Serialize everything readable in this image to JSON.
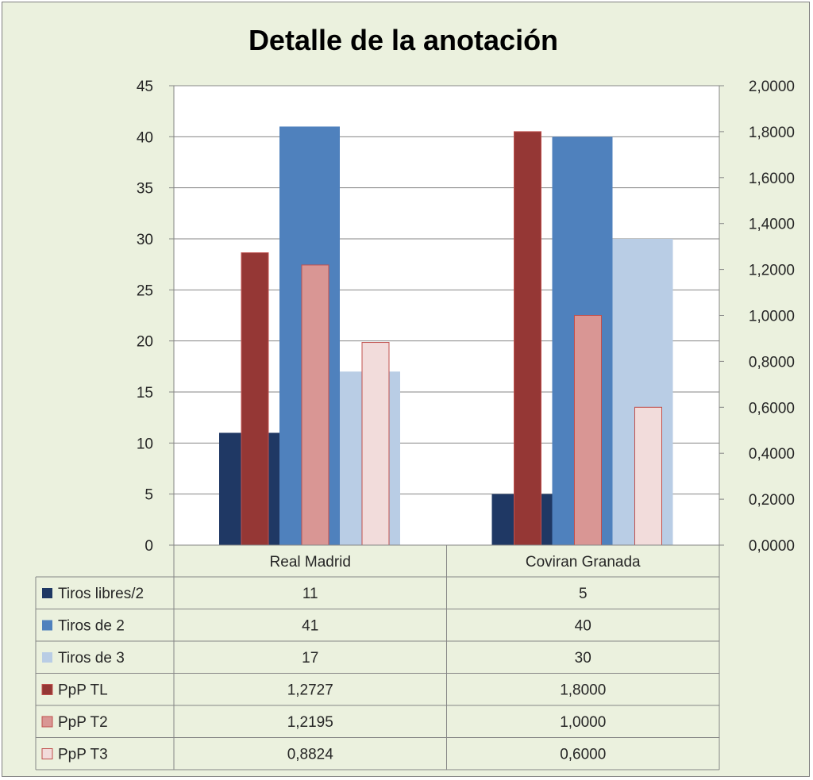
{
  "chart_data": {
    "type": "bar",
    "title": "Detalle de la anotación",
    "categories": [
      "Real Madrid",
      "Coviran Granada"
    ],
    "series": [
      {
        "name": "Tiros libres/2",
        "axis": "left",
        "values": [
          11,
          5
        ],
        "labels": [
          "11",
          "5"
        ],
        "color": "#1f3864"
      },
      {
        "name": "Tiros de 2",
        "axis": "left",
        "values": [
          41,
          40
        ],
        "labels": [
          "41",
          "40"
        ],
        "color": "#4f81bd"
      },
      {
        "name": "Tiros de 3",
        "axis": "left",
        "values": [
          17,
          30
        ],
        "labels": [
          "17",
          "30"
        ],
        "color": "#b9cde5"
      },
      {
        "name": "PpP TL",
        "axis": "right",
        "values": [
          1.2727,
          1.8
        ],
        "labels": [
          "1,2727",
          "1,8000"
        ],
        "color": "#953735"
      },
      {
        "name": "PpP T2",
        "axis": "right",
        "values": [
          1.2195,
          1.0
        ],
        "labels": [
          "1,2195",
          "1,0000"
        ],
        "color": "#d99694"
      },
      {
        "name": "PpP T3",
        "axis": "right",
        "values": [
          0.8824,
          0.6
        ],
        "labels": [
          "0,8824",
          "0,6000"
        ],
        "color": "#f2dcdb"
      }
    ],
    "y_left": {
      "ylim": [
        0,
        45
      ],
      "ticks": [
        "0",
        "5",
        "10",
        "15",
        "20",
        "25",
        "30",
        "35",
        "40",
        "45"
      ]
    },
    "y_right": {
      "ylim": [
        0,
        2
      ],
      "ticks": [
        "0,0000",
        "0,2000",
        "0,4000",
        "0,6000",
        "0,8000",
        "1,0000",
        "1,2000",
        "1,4000",
        "1,6000",
        "1,8000",
        "2,0000"
      ]
    },
    "grid": true,
    "legend": "data-table"
  }
}
